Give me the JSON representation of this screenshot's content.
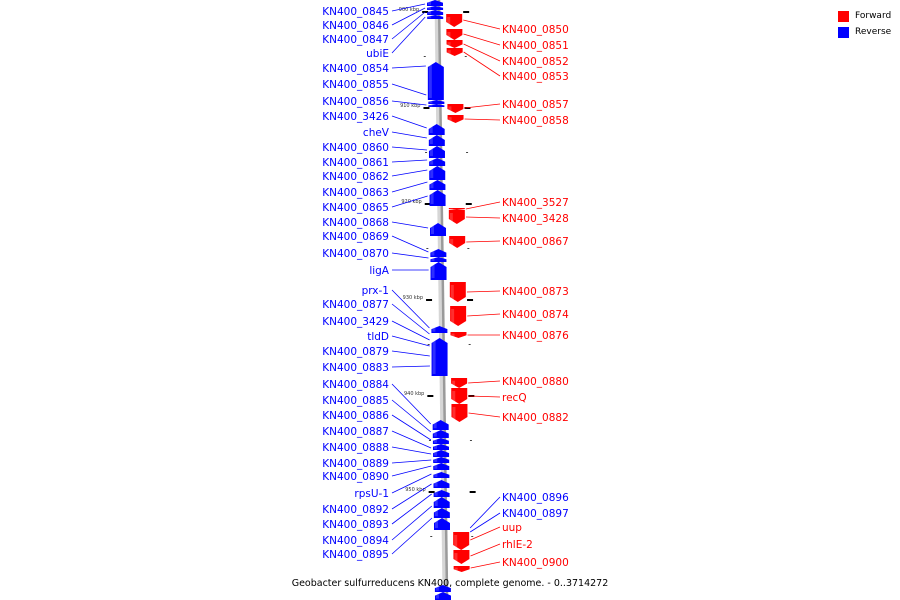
{
  "caption": "Geobacter sulfurreducens KN400, complete genome. - 0..3714272",
  "legend": [
    {
      "label": "Forward",
      "color": "#ff0000"
    },
    {
      "label": "Reverse",
      "color": "#0000ff"
    }
  ],
  "colors": {
    "forward": "#ff0000",
    "reverse": "#0000ff",
    "backbone": "#9a9a9a"
  },
  "ticks": [
    "900 kbp",
    "910 kbp",
    "920 kbp",
    "930 kbp",
    "940 kbp",
    "950 kbp"
  ],
  "reverse_labels": [
    "KN400_0845",
    "KN400_0846",
    "KN400_0847",
    "ubiE",
    "KN400_0854",
    "KN400_0855",
    "KN400_0856",
    "KN400_3426",
    "cheV",
    "KN400_0860",
    "KN400_0861",
    "KN400_0862",
    "KN400_0863",
    "KN400_0865",
    "KN400_0868",
    "KN400_0869",
    "KN400_0870",
    "ligA",
    "prx-1",
    "KN400_0877",
    "KN400_3429",
    "tldD",
    "KN400_0879",
    "KN400_0883",
    "KN400_0884",
    "KN400_0885",
    "KN400_0886",
    "KN400_0887",
    "KN400_0888",
    "KN400_0889",
    "KN400_0890",
    "rpsU-1",
    "KN400_0892",
    "KN400_0893",
    "KN400_0894",
    "KN400_0895"
  ],
  "forward_labels": [
    "KN400_0850",
    "KN400_0851",
    "KN400_0852",
    "KN400_0853",
    "KN400_0857",
    "KN400_0858",
    "KN400_3527",
    "KN400_3428",
    "KN400_0867",
    "KN400_0873",
    "KN400_0874",
    "KN400_0876",
    "KN400_0880",
    "recQ",
    "KN400_0882",
    "KN400_0896",
    "KN400_0897",
    "uup",
    "rhlE-2",
    "KN400_0900"
  ]
}
